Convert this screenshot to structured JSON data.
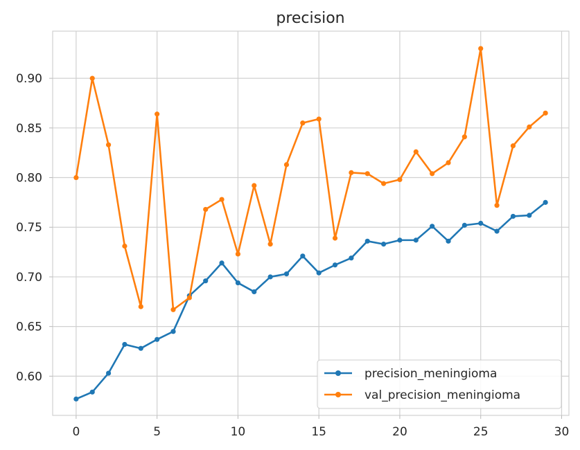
{
  "chart_data": {
    "type": "line",
    "title": "precision",
    "xlabel": "",
    "ylabel": "",
    "xlim": [
      -1.45,
      30.45
    ],
    "ylim": [
      0.5605,
      0.9475
    ],
    "xticks": [
      0,
      5,
      10,
      15,
      20,
      25,
      30
    ],
    "xtick_labels": [
      "0",
      "5",
      "10",
      "15",
      "20",
      "25",
      "30"
    ],
    "yticks": [
      0.6,
      0.65,
      0.7,
      0.75,
      0.8,
      0.85,
      0.9
    ],
    "ytick_labels": [
      "0.60",
      "0.65",
      "0.70",
      "0.75",
      "0.80",
      "0.85",
      "0.90"
    ],
    "grid": true,
    "legend_position": "lower-right",
    "x": [
      0,
      1,
      2,
      3,
      4,
      5,
      6,
      7,
      8,
      9,
      10,
      11,
      12,
      13,
      14,
      15,
      16,
      17,
      18,
      19,
      20,
      21,
      22,
      23,
      24,
      25,
      26,
      27,
      28,
      29
    ],
    "series": [
      {
        "name": "precision_meningioma",
        "color": "#1f77b4",
        "marker": "circle",
        "values": [
          0.577,
          0.584,
          0.603,
          0.632,
          0.628,
          0.637,
          0.645,
          0.681,
          0.696,
          0.714,
          0.694,
          0.685,
          0.7,
          0.703,
          0.721,
          0.704,
          0.712,
          0.719,
          0.736,
          0.733,
          0.737,
          0.737,
          0.751,
          0.736,
          0.752,
          0.754,
          0.746,
          0.761,
          0.762,
          0.775
        ]
      },
      {
        "name": "val_precision_meningioma",
        "color": "#ff7f0e",
        "marker": "circle",
        "values": [
          0.8,
          0.9,
          0.833,
          0.731,
          0.67,
          0.864,
          0.667,
          0.679,
          0.768,
          0.778,
          0.723,
          0.792,
          0.733,
          0.813,
          0.855,
          0.859,
          0.739,
          0.805,
          0.804,
          0.794,
          0.798,
          0.826,
          0.804,
          0.815,
          0.841,
          0.93,
          0.772,
          0.832,
          0.851,
          0.865
        ]
      }
    ]
  }
}
